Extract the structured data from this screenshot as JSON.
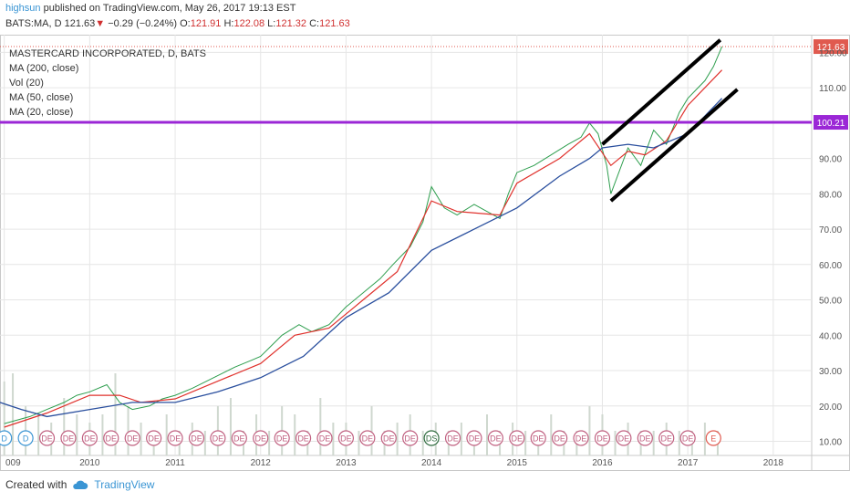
{
  "header": {
    "author": "highsun",
    "published_text": "published on TradingView.com, May 26, 2017 19:13 EST",
    "symbol": "BATS:MA, D",
    "last": "121.63",
    "change_arrow": "▼",
    "change": "−0.29 (−0.24%)",
    "o_label": "O:",
    "o_value": "121.91",
    "h_label": "H:",
    "h_value": "122.08",
    "l_label": "L:",
    "l_value": "121.32",
    "c_label": "C:",
    "c_value": "121.63"
  },
  "legend": {
    "title": "MASTERCARD INCORPORATED, D, BATS",
    "items": [
      "MA (200, close)",
      "Vol (20)",
      "MA (50, close)",
      "MA (20, close)"
    ]
  },
  "footer": {
    "created_with": "Created with",
    "brand": "TradingView"
  },
  "colors": {
    "price_up": "#2e9e4e",
    "price_down": "#d23b3b",
    "ma20": "#e0312c",
    "ma50": "#2a4f9e",
    "hline": "#9b27d6",
    "channel": "#000000",
    "last_badge": "#e05a4f",
    "grid": "#e6e6e6"
  },
  "chart_data": {
    "type": "line",
    "title": "MASTERCARD INCORPORATED, D, BATS",
    "x_ticks": [
      "009",
      "2010",
      "2011",
      "2012",
      "2013",
      "2014",
      "2015",
      "2016",
      "2017",
      "2018"
    ],
    "x_tick_years": [
      2009.0,
      2010.0,
      2011.0,
      2012.0,
      2013.0,
      2014.0,
      2015.0,
      2016.0,
      2017.0,
      2018.0
    ],
    "y_ticks": [
      10,
      20,
      30,
      40,
      50,
      60,
      70,
      80,
      90,
      110,
      120
    ],
    "y_tick_labels": [
      "10.00",
      "20.00",
      "30.00",
      "40.00",
      "50.00",
      "60.00",
      "70.00",
      "80.00",
      "90.00",
      "110.00",
      "120.00"
    ],
    "ylim": [
      6,
      125
    ],
    "xlim": [
      2008.95,
      2018.45
    ],
    "series": [
      {
        "name": "price",
        "x": [
          2009.0,
          2009.3,
          2009.5,
          2009.7,
          2009.85,
          2010.0,
          2010.2,
          2010.35,
          2010.5,
          2010.7,
          2010.85,
          2011.0,
          2011.2,
          2011.45,
          2011.7,
          2011.9,
          2012.0,
          2012.25,
          2012.45,
          2012.6,
          2012.8,
          2013.0,
          2013.2,
          2013.4,
          2013.55,
          2013.75,
          2013.9,
          2014.0,
          2014.15,
          2014.3,
          2014.5,
          2014.65,
          2014.8,
          2014.9,
          2015.0,
          2015.2,
          2015.4,
          2015.6,
          2015.75,
          2015.85,
          2015.95,
          2016.05,
          2016.1,
          2016.3,
          2016.45,
          2016.6,
          2016.75,
          2016.9,
          2017.0,
          2017.2,
          2017.3,
          2017.4
        ],
        "y": [
          15,
          17,
          19,
          21,
          23,
          24,
          26,
          21,
          19,
          20,
          22,
          23,
          25,
          28,
          31,
          33,
          34,
          40,
          43,
          41,
          43,
          48,
          52,
          56,
          60,
          65,
          72,
          82,
          76,
          74,
          77,
          75,
          73,
          80,
          86,
          88,
          91,
          94,
          96,
          100,
          97,
          88,
          80,
          93,
          88,
          98,
          94,
          103,
          107,
          112,
          116,
          121.63
        ]
      },
      {
        "name": "MA (20, close)",
        "x": [
          2009.0,
          2009.5,
          2010.0,
          2010.35,
          2010.6,
          2011.0,
          2011.5,
          2012.0,
          2012.4,
          2012.8,
          2013.2,
          2013.6,
          2014.0,
          2014.3,
          2014.8,
          2015.0,
          2015.5,
          2015.85,
          2016.1,
          2016.3,
          2016.5,
          2016.75,
          2017.0,
          2017.2,
          2017.4
        ],
        "y": [
          14,
          18,
          23,
          23,
          21,
          22,
          27,
          32,
          40,
          42,
          50,
          58,
          78,
          75,
          74,
          83,
          90,
          97,
          88,
          92,
          91,
          95,
          105,
          110,
          115
        ]
      },
      {
        "name": "MA (50, close)",
        "x": [
          2008.95,
          2009.2,
          2009.5,
          2010.0,
          2010.5,
          2011.0,
          2011.5,
          2012.0,
          2012.5,
          2013.0,
          2013.5,
          2014.0,
          2014.5,
          2015.0,
          2015.5,
          2015.85,
          2016.0,
          2016.3,
          2016.6,
          2017.0,
          2017.4
        ],
        "y": [
          21,
          19,
          17,
          19,
          21,
          21,
          24,
          28,
          34,
          45,
          52,
          64,
          70,
          76,
          85,
          90,
          93,
          94,
          93,
          97,
          107
        ]
      }
    ],
    "horizontal_line": {
      "value": 100.21,
      "label": "100.21"
    },
    "last_price": {
      "value": 121.63,
      "label": "121.63"
    },
    "channel_lines": [
      {
        "x": [
          2016.0,
          2017.38
        ],
        "y": [
          94,
          123.5
        ]
      },
      {
        "x": [
          2016.1,
          2017.58
        ],
        "y": [
          78,
          109.5
        ]
      }
    ],
    "volume": {
      "x": [
        2009.0,
        2009.1,
        2009.25,
        2009.4,
        2009.55,
        2009.7,
        2009.85,
        2010.0,
        2010.15,
        2010.3,
        2010.45,
        2010.6,
        2010.75,
        2010.9,
        2011.05,
        2011.2,
        2011.35,
        2011.5,
        2011.65,
        2011.8,
        2011.95,
        2012.1,
        2012.25,
        2012.4,
        2012.55,
        2012.7,
        2012.85,
        2013.0,
        2013.15,
        2013.3,
        2013.45,
        2013.6,
        2013.75,
        2013.9,
        2014.05,
        2014.2,
        2014.35,
        2014.5,
        2014.65,
        2014.8,
        2014.95,
        2015.1,
        2015.25,
        2015.4,
        2015.55,
        2015.7,
        2015.85,
        2016.0,
        2016.15,
        2016.3,
        2016.45,
        2016.6,
        2016.75,
        2016.9,
        2017.05,
        2017.2,
        2017.35
      ],
      "h": [
        0.9,
        1.0,
        0.6,
        0.5,
        0.4,
        0.7,
        0.5,
        0.4,
        0.5,
        1.0,
        0.6,
        0.4,
        0.3,
        0.5,
        0.3,
        0.4,
        0.3,
        0.6,
        0.7,
        0.3,
        0.5,
        0.3,
        0.6,
        0.5,
        0.3,
        0.7,
        0.4,
        0.4,
        0.3,
        0.6,
        0.3,
        0.4,
        0.5,
        0.3,
        0.4,
        0.3,
        0.4,
        0.3,
        0.5,
        0.3,
        0.4,
        0.3,
        0.3,
        0.5,
        0.3,
        0.3,
        0.6,
        0.5,
        0.3,
        0.4,
        0.3,
        0.3,
        0.4,
        0.3,
        0.3,
        0.4,
        0.3
      ]
    },
    "events": {
      "x": [
        2009.0,
        2009.25,
        2009.5,
        2009.75,
        2010.0,
        2010.25,
        2010.5,
        2010.75,
        2011.0,
        2011.25,
        2011.5,
        2011.75,
        2012.0,
        2012.25,
        2012.5,
        2012.75,
        2013.0,
        2013.25,
        2013.5,
        2013.75,
        2014.0,
        2014.25,
        2014.5,
        2014.75,
        2015.0,
        2015.25,
        2015.5,
        2015.75,
        2016.0,
        2016.25,
        2016.5,
        2016.75,
        2017.0,
        2017.3
      ],
      "labels": [
        "D",
        "D",
        "DE",
        "DE",
        "DE",
        "DE",
        "DE",
        "DE",
        "DE",
        "DE",
        "DE",
        "DE",
        "DE",
        "DE",
        "DE",
        "DE",
        "DE",
        "DE",
        "DE",
        "DE",
        "DS",
        "DE",
        "DE",
        "DE",
        "DE",
        "DE",
        "DE",
        "DE",
        "DE",
        "DE",
        "DE",
        "DE",
        "DE",
        "E"
      ]
    }
  }
}
